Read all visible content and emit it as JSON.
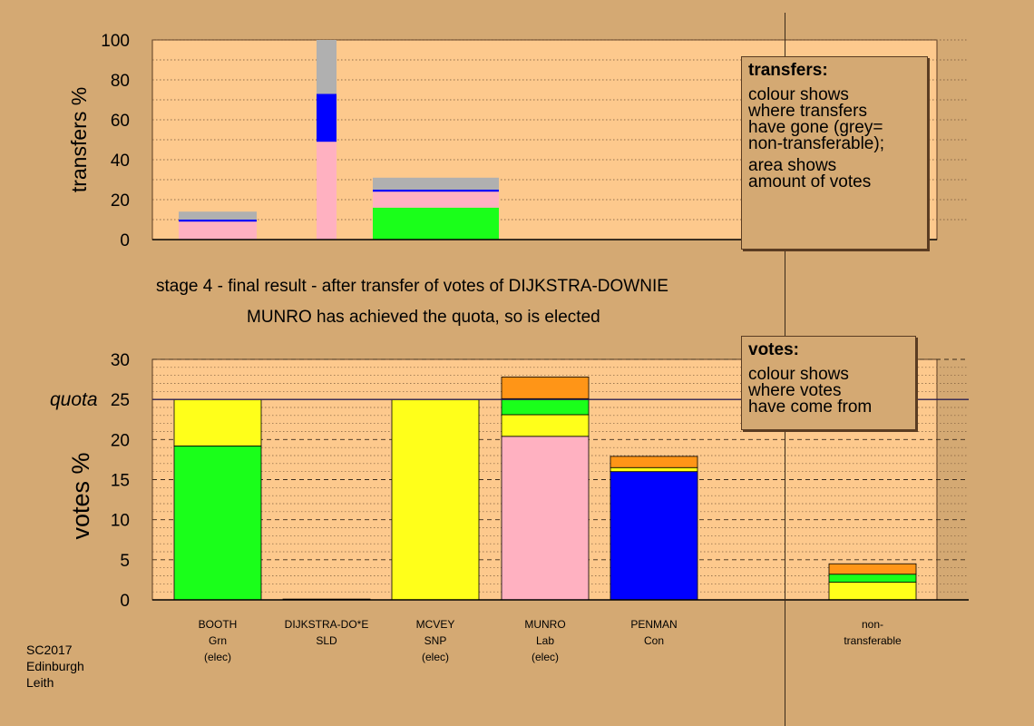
{
  "colors": {
    "background": "#d4a973",
    "plot_bg": "#fdc98d",
    "pink": "#ffb1c1",
    "green": "#1aff1a",
    "yellow": "#ffff1a",
    "blue": "#0000ff",
    "orange": "#ff9517",
    "grey": "#b0b0b0"
  },
  "stage_title": "stage 4 - final result - after transfer of votes of DIJKSTRA-DOWNIE",
  "stage_subtitle": "MUNRO has achieved the quota, so is elected",
  "transfers_legend": {
    "title": "transfers:",
    "lines1": [
      "colour shows",
      "where transfers",
      "have gone (grey=",
      "non-transferable);"
    ],
    "lines2": [
      "area shows",
      "amount of votes"
    ]
  },
  "votes_legend": {
    "title": "votes:",
    "lines": [
      "colour shows",
      "where votes",
      "have come from"
    ]
  },
  "candidates": [
    {
      "name": "BOOTH",
      "party": "Grn",
      "status": "(elec)"
    },
    {
      "name": "DIJKSTRA-DO*E",
      "party": "SLD",
      "status": ""
    },
    {
      "name": "MCVEY",
      "party": "SNP",
      "status": "(elec)"
    },
    {
      "name": "MUNRO",
      "party": "Lab",
      "status": "(elec)"
    },
    {
      "name": "PENMAN",
      "party": "Con",
      "status": ""
    },
    {
      "name": "non-",
      "party": "transferable",
      "status": ""
    }
  ],
  "footer": [
    "SC2017",
    "Edinburgh",
    "Leith"
  ],
  "chart_data": [
    {
      "type": "bar",
      "stacked": true,
      "ylabel": "transfers %",
      "ylim": [
        0,
        100
      ],
      "yticks": [
        0,
        20,
        40,
        60,
        80,
        100
      ],
      "grid": true,
      "bars": [
        {
          "segments": [
            {
              "color": "pink",
              "value": 9
            },
            {
              "color": "blue",
              "value": 1
            },
            {
              "color": "grey",
              "value": 4
            }
          ]
        },
        {
          "segments": [
            {
              "color": "pink",
              "value": 49
            },
            {
              "color": "blue",
              "value": 24
            },
            {
              "color": "grey",
              "value": 27
            }
          ]
        },
        {
          "segments": [
            {
              "color": "green",
              "value": 16
            },
            {
              "color": "pink",
              "value": 8
            },
            {
              "color": "blue",
              "value": 1
            },
            {
              "color": "grey",
              "value": 6
            }
          ]
        }
      ]
    },
    {
      "type": "bar",
      "stacked": true,
      "ylabel": "votes %",
      "ylim": [
        0,
        30
      ],
      "yticks": [
        0,
        5,
        10,
        15,
        20,
        25,
        30
      ],
      "quota": 25,
      "quota_label": "quota",
      "grid": true,
      "bars": [
        {
          "candidate": "BOOTH",
          "segments": [
            {
              "color": "green",
              "value": 19.2
            },
            {
              "color": "yellow",
              "value": 5.8
            }
          ]
        },
        {
          "candidate": "DIJKSTRA-DO*E",
          "segments": [
            {
              "color": "pink",
              "value": 0.1
            }
          ]
        },
        {
          "candidate": "MCVEY",
          "segments": [
            {
              "color": "yellow",
              "value": 25.0
            }
          ]
        },
        {
          "candidate": "MUNRO",
          "segments": [
            {
              "color": "pink",
              "value": 20.4
            },
            {
              "color": "yellow",
              "value": 2.7
            },
            {
              "color": "green",
              "value": 2.0
            },
            {
              "color": "orange",
              "value": 2.7
            }
          ]
        },
        {
          "candidate": "PENMAN",
          "segments": [
            {
              "color": "blue",
              "value": 16.0
            },
            {
              "color": "yellow",
              "value": 0.5
            },
            {
              "color": "orange",
              "value": 1.4
            }
          ]
        },
        {
          "candidate": "non-transferable",
          "segments": [
            {
              "color": "yellow",
              "value": 2.2
            },
            {
              "color": "green",
              "value": 1.0
            },
            {
              "color": "orange",
              "value": 1.3
            }
          ]
        }
      ]
    }
  ]
}
